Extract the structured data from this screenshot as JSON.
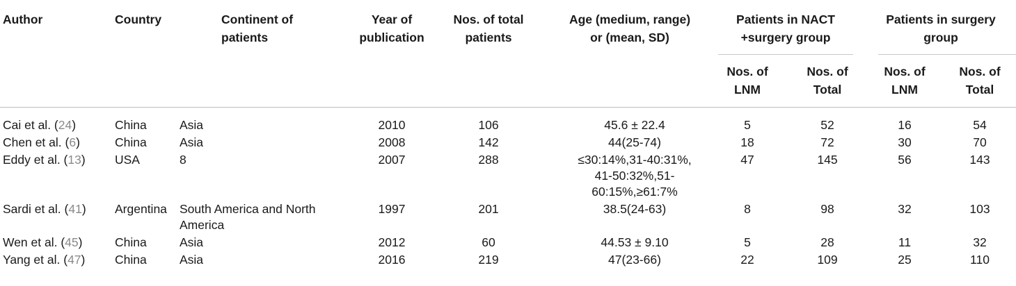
{
  "headers": {
    "author": "Author",
    "country": "Country",
    "continent": "Continent of patients",
    "year": "Year of publication",
    "total": "Nos. of total patients",
    "age": "Age (medium, range) or (mean, SD)",
    "nact_group": "Patients in NACT +surgery group",
    "surgery_group": "Patients in surgery group",
    "nos_lnm": "Nos. of LNM",
    "nos_total": "Nos. of Total"
  },
  "rows": [
    {
      "author": "Cai et al. (",
      "ref": "24",
      "close": ")",
      "country": "China",
      "continent": "Asia",
      "year": "2010",
      "total": "106",
      "age": "45.6 ± 22.4",
      "nact_lnm": "5",
      "nact_total": "52",
      "surg_lnm": "16",
      "surg_total": "54"
    },
    {
      "author": "Chen et al. (",
      "ref": "6",
      "close": ")",
      "country": "China",
      "continent": "Asia",
      "year": "2008",
      "total": "142",
      "age": "44(25-74)",
      "nact_lnm": "18",
      "nact_total": "72",
      "surg_lnm": "30",
      "surg_total": "70"
    },
    {
      "author": "Eddy et al. (",
      "ref": "13",
      "close": ")",
      "country": "USA",
      "continent": "8",
      "year": "2007",
      "total": "288",
      "age": "≤30:14%,31-40:31%, 41-50:32%,51- 60:15%,≥61:7%",
      "nact_lnm": "47",
      "nact_total": "145",
      "surg_lnm": "56",
      "surg_total": "143"
    },
    {
      "author": "Sardi et al. (",
      "ref": "41",
      "close": ")",
      "country": "Argentina",
      "continent": "South America and North America",
      "year": "1997",
      "total": "201",
      "age": "38.5(24-63)",
      "nact_lnm": "8",
      "nact_total": "98",
      "surg_lnm": "32",
      "surg_total": "103"
    },
    {
      "author": "Wen et al. (",
      "ref": "45",
      "close": ")",
      "country": "China",
      "continent": "Asia",
      "year": "2012",
      "total": "60",
      "age": "44.53 ± 9.10",
      "nact_lnm": "5",
      "nact_total": "28",
      "surg_lnm": "11",
      "surg_total": "32"
    },
    {
      "author": "Yang et al. (",
      "ref": "47",
      "close": ")",
      "country": "China",
      "continent": "Asia",
      "year": "2016",
      "total": "219",
      "age": "47(23-66)",
      "nact_lnm": "22",
      "nact_total": "109",
      "surg_lnm": "25",
      "surg_total": "110"
    }
  ]
}
